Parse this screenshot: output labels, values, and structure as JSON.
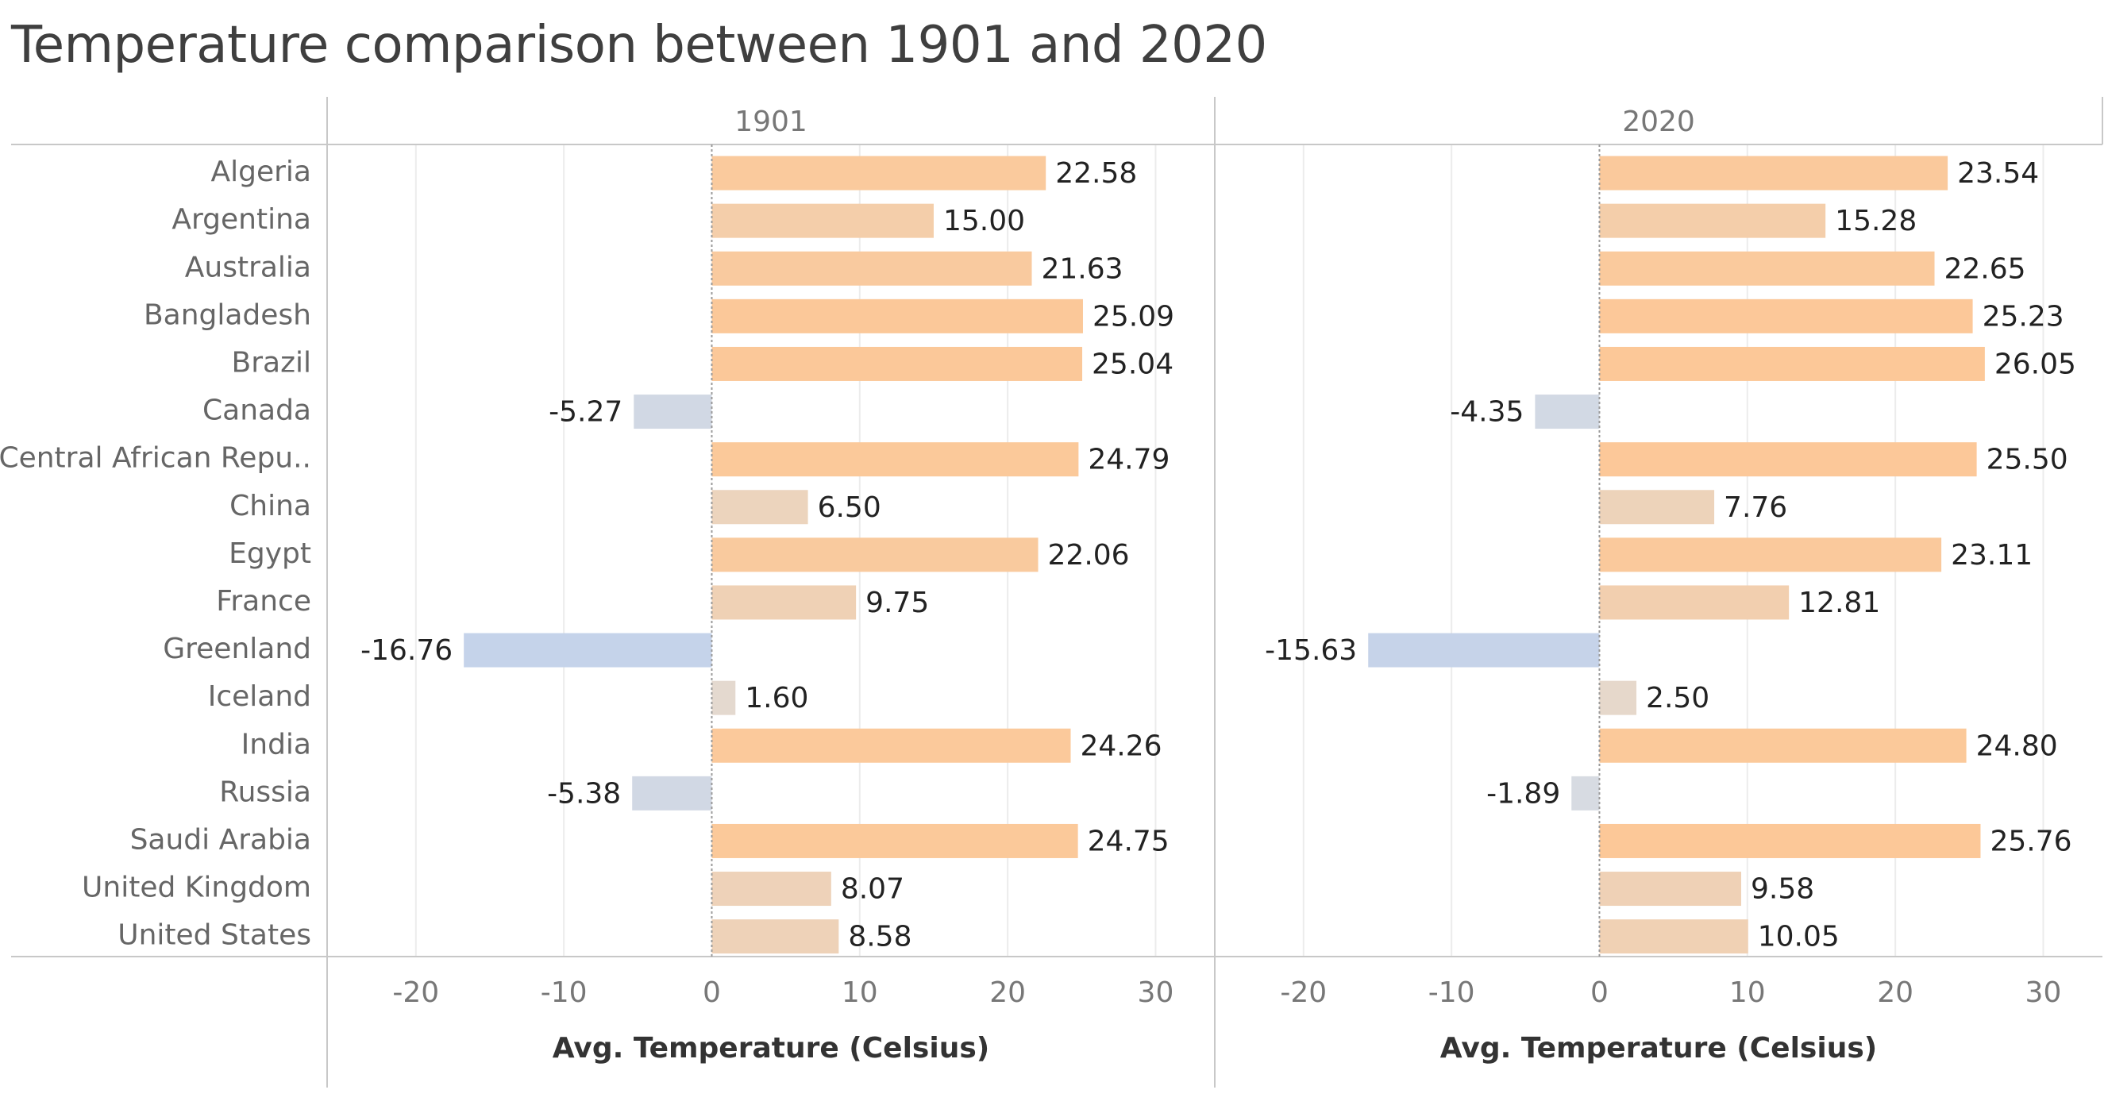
{
  "title": "Temperature comparison between 1901 and 2020",
  "chart_data": {
    "type": "bar",
    "orientation": "horizontal",
    "title": "Temperature comparison between 1901 and 2020",
    "categories": [
      "Algeria",
      "Argentina",
      "Australia",
      "Bangladesh",
      "Brazil",
      "Canada",
      "Central African Repu..",
      "China",
      "Egypt",
      "France",
      "Greenland",
      "Iceland",
      "India",
      "Russia",
      "Saudi Arabia",
      "United Kingdom",
      "United States"
    ],
    "series": [
      {
        "name": "1901",
        "values": [
          22.58,
          15.0,
          21.63,
          25.09,
          25.04,
          -5.27,
          24.79,
          6.5,
          22.06,
          9.75,
          -16.76,
          1.6,
          24.26,
          -5.38,
          24.75,
          8.07,
          8.58
        ],
        "labels": [
          "22.58",
          "15.00",
          "21.63",
          "25.09",
          "25.04",
          "-5.27",
          "24.79",
          "6.50",
          "22.06",
          "9.75",
          "-16.76",
          "1.60",
          "24.26",
          "-5.38",
          "24.75",
          "8.07",
          "8.58"
        ]
      },
      {
        "name": "2020",
        "values": [
          23.54,
          15.28,
          22.65,
          25.23,
          26.05,
          -4.35,
          25.5,
          7.76,
          23.11,
          12.81,
          -15.63,
          2.5,
          24.8,
          -1.89,
          25.76,
          9.58,
          10.05
        ],
        "labels": [
          "23.54",
          "15.28",
          "22.65",
          "25.23",
          "26.05",
          "-4.35",
          "25.50",
          "7.76",
          "23.11",
          "12.81",
          "-15.63",
          "2.50",
          "24.80",
          "-1.89",
          "25.76",
          "9.58",
          "10.05"
        ]
      }
    ],
    "xlabel": "Avg. Temperature (Celsius)",
    "xlim": [
      -26,
      34
    ],
    "xticks": [
      -20,
      -10,
      0,
      10,
      20,
      30
    ],
    "tick_labels": [
      "-20",
      "-10",
      "0",
      "10",
      "20",
      "30"
    ],
    "grid": true,
    "legend": "none",
    "color_scale": {
      "type": "diverging",
      "min_color": "#c5d3ea",
      "mid_color": "#dedede",
      "max_color": "#fcc898",
      "min_value": -17,
      "max_value": 26
    }
  }
}
